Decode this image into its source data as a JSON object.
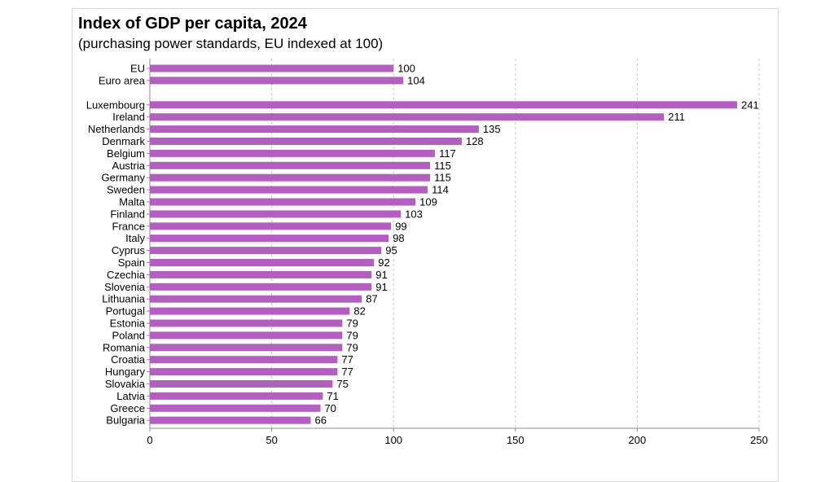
{
  "chart_data": {
    "type": "bar",
    "orientation": "horizontal",
    "title": "Index of GDP per capita, 2024",
    "subtitle": "(purchasing power standards, EU indexed at 100)",
    "categories": [
      "EU",
      "Euro area",
      "Luxembourg",
      "Ireland",
      "Netherlands",
      "Denmark",
      "Belgium",
      "Austria",
      "Germany",
      "Sweden",
      "Malta",
      "Finland",
      "France",
      "Italy",
      "Cyprus",
      "Spain",
      "Czechia",
      "Slovenia",
      "Lithuania",
      "Portugal",
      "Estonia",
      "Poland",
      "Romania",
      "Croatia",
      "Hungary",
      "Slovakia",
      "Latvia",
      "Greece",
      "Bulgaria"
    ],
    "values": [
      100,
      104,
      241,
      211,
      135,
      128,
      117,
      115,
      115,
      114,
      109,
      103,
      99,
      98,
      95,
      92,
      91,
      91,
      87,
      82,
      79,
      79,
      79,
      77,
      77,
      75,
      71,
      70,
      66
    ],
    "group_break_after": 1,
    "xlim": [
      0,
      250
    ],
    "xticks": [
      0,
      50,
      100,
      150,
      200,
      250
    ],
    "xlabel": "",
    "ylabel": "",
    "grid": "vertical dashed",
    "bar_color": "#b25fbf"
  }
}
